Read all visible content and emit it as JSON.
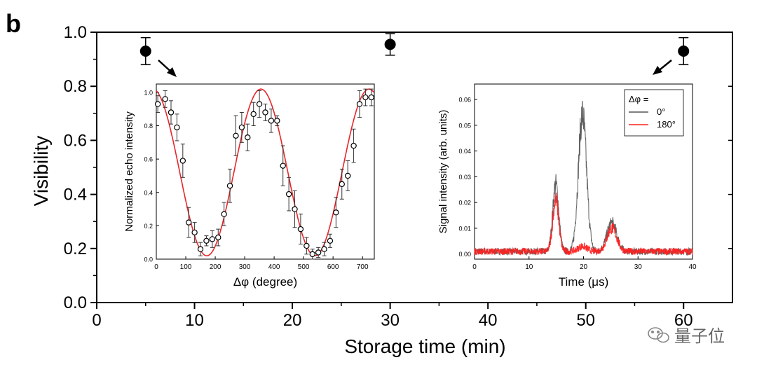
{
  "panel_label": "b",
  "watermark": {
    "text": "量子位",
    "icon": "wechat-icon"
  },
  "chart_data": [
    {
      "id": "main",
      "type": "scatter",
      "xlabel": "Storage time (min)",
      "ylabel": "Visibility",
      "xlim": [
        0,
        65
      ],
      "ylim": [
        0.0,
        1.0
      ],
      "xticks": [
        0,
        10,
        20,
        30,
        40,
        50,
        60
      ],
      "yticks": [
        0.0,
        0.2,
        0.4,
        0.6,
        0.8,
        1.0
      ],
      "ytick_labels": [
        "0.0",
        "0.2",
        "0.4",
        "0.6",
        "0.8",
        "1.0"
      ],
      "points": [
        {
          "x": 5,
          "y": 0.93,
          "err": 0.05
        },
        {
          "x": 30,
          "y": 0.955,
          "err": 0.04
        },
        {
          "x": 60,
          "y": 0.93,
          "err": 0.05
        }
      ]
    },
    {
      "id": "inset_left",
      "type": "scatter",
      "xlabel": "Δφ (degree)",
      "ylabel": "Normalized echo intensity",
      "xlim": [
        0,
        740
      ],
      "ylim": [
        0,
        1.05
      ],
      "xticks": [
        0,
        100,
        200,
        300,
        400,
        500,
        600,
        700
      ],
      "yticks": [
        0.0,
        0.2,
        0.4,
        0.6,
        0.8,
        1.0
      ],
      "ytick_labels": [
        "0.0",
        "0.2",
        "0.4",
        "0.6",
        "0.8",
        "1.0"
      ],
      "points": [
        {
          "x": 5,
          "y": 0.93,
          "err": 0.05
        },
        {
          "x": 30,
          "y": 0.96,
          "err": 0.05
        },
        {
          "x": 50,
          "y": 0.88,
          "err": 0.07
        },
        {
          "x": 70,
          "y": 0.79,
          "err": 0.08
        },
        {
          "x": 90,
          "y": 0.59,
          "err": 0.1
        },
        {
          "x": 110,
          "y": 0.22,
          "err": 0.09
        },
        {
          "x": 130,
          "y": 0.16,
          "err": 0.06
        },
        {
          "x": 150,
          "y": 0.06,
          "err": 0.04
        },
        {
          "x": 170,
          "y": 0.11,
          "err": 0.03
        },
        {
          "x": 190,
          "y": 0.12,
          "err": 0.05
        },
        {
          "x": 210,
          "y": 0.13,
          "err": 0.05
        },
        {
          "x": 230,
          "y": 0.27,
          "err": 0.07
        },
        {
          "x": 250,
          "y": 0.44,
          "err": 0.1
        },
        {
          "x": 270,
          "y": 0.74,
          "err": 0.12
        },
        {
          "x": 290,
          "y": 0.79,
          "err": 0.09
        },
        {
          "x": 310,
          "y": 0.73,
          "err": 0.08
        },
        {
          "x": 330,
          "y": 0.87,
          "err": 0.07
        },
        {
          "x": 350,
          "y": 0.93,
          "err": 0.08
        },
        {
          "x": 370,
          "y": 0.88,
          "err": 0.05
        },
        {
          "x": 390,
          "y": 0.83,
          "err": 0.07
        },
        {
          "x": 410,
          "y": 0.83,
          "err": 0.03
        },
        {
          "x": 430,
          "y": 0.56,
          "err": 0.12
        },
        {
          "x": 450,
          "y": 0.39,
          "err": 0.1
        },
        {
          "x": 470,
          "y": 0.3,
          "err": 0.11
        },
        {
          "x": 490,
          "y": 0.18,
          "err": 0.09
        },
        {
          "x": 510,
          "y": 0.08,
          "err": 0.05
        },
        {
          "x": 530,
          "y": 0.03,
          "err": 0.03
        },
        {
          "x": 550,
          "y": 0.04,
          "err": 0.03
        },
        {
          "x": 570,
          "y": 0.06,
          "err": 0.04
        },
        {
          "x": 590,
          "y": 0.11,
          "err": 0.04
        },
        {
          "x": 610,
          "y": 0.28,
          "err": 0.09
        },
        {
          "x": 630,
          "y": 0.45,
          "err": 0.09
        },
        {
          "x": 650,
          "y": 0.5,
          "err": 0.09
        },
        {
          "x": 670,
          "y": 0.68,
          "err": 0.1
        },
        {
          "x": 690,
          "y": 0.93,
          "err": 0.08
        },
        {
          "x": 710,
          "y": 0.97,
          "err": 0.05
        },
        {
          "x": 730,
          "y": 0.97,
          "err": 0.05
        }
      ],
      "fit": {
        "label": "fit",
        "color": "#e8262b",
        "form": "a + b*cos(2*pi*(x - x0)/period)",
        "a": 0.52,
        "b": 0.5,
        "x0": 355,
        "period": 367
      }
    },
    {
      "id": "inset_right",
      "type": "line",
      "xlabel": "Time (μs)",
      "ylabel": "Signal intensity (arb. units)",
      "xlim": [
        0,
        40
      ],
      "ylim": [
        -0.002,
        0.066
      ],
      "xticks": [
        0,
        10,
        20,
        30,
        40
      ],
      "yticks": [
        0.0,
        0.01,
        0.02,
        0.03,
        0.04,
        0.05,
        0.06
      ],
      "ytick_labels": [
        "0.00",
        "0.01",
        "0.02",
        "0.03",
        "0.04",
        "0.05",
        "0.06"
      ],
      "legend_title": "Δφ =",
      "legend_position": "top-right",
      "series": [
        {
          "name": "0°",
          "color": "#555555",
          "peaks": [
            {
              "center": 14.9,
              "width": 0.55,
              "height": 0.026
            },
            {
              "center": 19.8,
              "width": 0.75,
              "height": 0.053
            },
            {
              "center": 25.2,
              "width": 0.9,
              "height": 0.011
            }
          ],
          "baseline": 0.001
        },
        {
          "name": "180°",
          "color": "#ff2020",
          "peaks": [
            {
              "center": 14.9,
              "width": 0.55,
              "height": 0.02
            },
            {
              "center": 19.8,
              "width": 0.8,
              "height": 0.002
            },
            {
              "center": 25.2,
              "width": 0.9,
              "height": 0.009
            }
          ],
          "baseline": 0.001
        }
      ]
    }
  ],
  "colors": {
    "fit": "#e8262b",
    "line_dark": "#555555",
    "line_red": "#ff2020",
    "axis": "#000000"
  }
}
